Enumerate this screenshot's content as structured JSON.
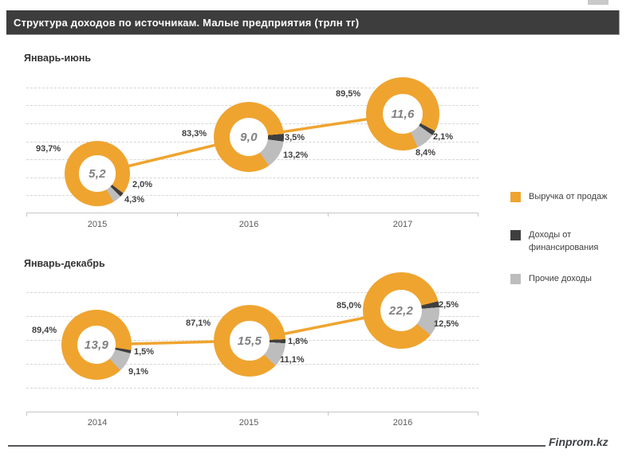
{
  "title": "Структура доходов  по источникам. Малые предприятия (трлн тг)",
  "footer": {
    "brand": "Finprom.kz"
  },
  "colors": {
    "revenue": "#EFA42F",
    "financing": "#3F3F3F",
    "other": "#BDBDBD",
    "titlebar_bg": "#3D3D3D",
    "trend_line": "#EFA42F"
  },
  "legend": [
    {
      "label": "Выручка от продаж",
      "color": "#EFA42F"
    },
    {
      "label": "Доходы от финансирования",
      "color": "#3F3F3F"
    },
    {
      "label": "Прочие доходы",
      "color": "#BDBDBD"
    }
  ],
  "chart_data": [
    {
      "type": "pie",
      "subtype": "donut-series-with-trend",
      "title": "Январь-июнь",
      "unit": "трлн тг",
      "categories": [
        "2015",
        "2016",
        "2017"
      ],
      "series_names": [
        "Выручка от продаж",
        "Доходы от финансирования",
        "Прочие доходы"
      ],
      "donuts": [
        {
          "category": "2015",
          "total": 5.2,
          "total_label": "5,2",
          "values": [
            93.7,
            2.0,
            4.3
          ],
          "value_labels": [
            "93,7%",
            "2,0%",
            "4,3%"
          ]
        },
        {
          "category": "2016",
          "total": 9.0,
          "total_label": "9,0",
          "values": [
            83.3,
            3.5,
            13.2
          ],
          "value_labels": [
            "83,3%",
            "3,5%",
            "13,2%"
          ]
        },
        {
          "category": "2017",
          "total": 11.6,
          "total_label": "11,6",
          "values": [
            89.5,
            2.1,
            8.4
          ],
          "value_labels": [
            "89,5%",
            "2,1%",
            "8,4%"
          ]
        }
      ]
    },
    {
      "type": "pie",
      "subtype": "donut-series-with-trend",
      "title": "Январь-декабрь",
      "unit": "трлн тг",
      "categories": [
        "2014",
        "2015",
        "2016"
      ],
      "series_names": [
        "Выручка от продаж",
        "Доходы от финансирования",
        "Прочие доходы"
      ],
      "donuts": [
        {
          "category": "2014",
          "total": 13.9,
          "total_label": "13,9",
          "values": [
            89.4,
            1.5,
            9.1
          ],
          "value_labels": [
            "89,4%",
            "1,5%",
            "9,1%"
          ]
        },
        {
          "category": "2015",
          "total": 15.5,
          "total_label": "15,5",
          "values": [
            87.1,
            1.8,
            11.1
          ],
          "value_labels": [
            "87,1%",
            "1,8%",
            "11,1%"
          ]
        },
        {
          "category": "2016",
          "total": 22.2,
          "total_label": "22,2",
          "values": [
            85.0,
            2.5,
            12.5
          ],
          "value_labels": [
            "85,0%",
            "2,5%",
            "12,5%"
          ]
        }
      ]
    }
  ]
}
